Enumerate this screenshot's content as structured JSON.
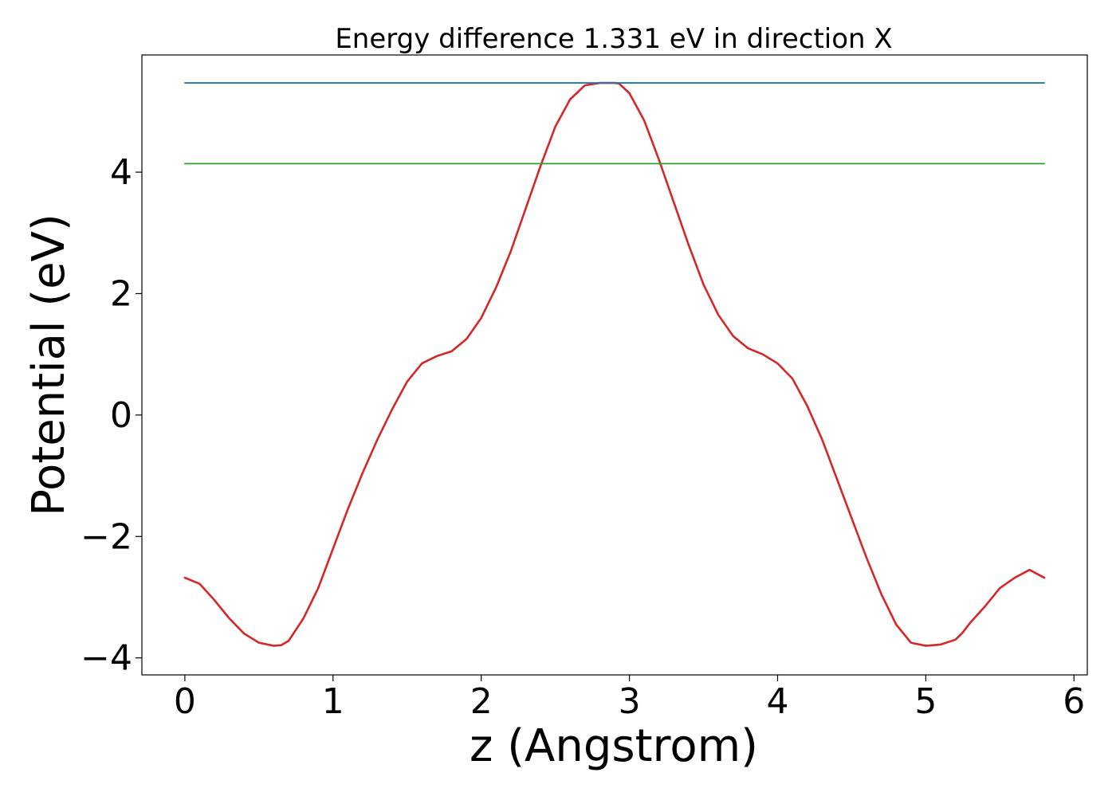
{
  "chart_data": {
    "type": "line",
    "title": "Energy difference 1.331 eV in direction X",
    "xlabel": "z (Angstrom)",
    "ylabel": "Potential (eV)",
    "xlim": [
      -0.29,
      6.09
    ],
    "ylim": [
      -4.28,
      5.93
    ],
    "xticks": [
      0,
      1,
      2,
      3,
      4,
      5,
      6
    ],
    "yticks": [
      -4,
      -2,
      0,
      2,
      4
    ],
    "xtick_labels": [
      "0",
      "1",
      "2",
      "3",
      "4",
      "5",
      "6"
    ],
    "ytick_labels": [
      "−4",
      "−2",
      "0",
      "2",
      "4"
    ],
    "grid": false,
    "legend": "none",
    "series": [
      {
        "color": "#d62728",
        "x": [
          0,
          0.1,
          0.2,
          0.3,
          0.4,
          0.5,
          0.6,
          0.65,
          0.7,
          0.8,
          0.9,
          1.0,
          1.1,
          1.2,
          1.3,
          1.4,
          1.5,
          1.6,
          1.7,
          1.8,
          1.9,
          2.0,
          2.1,
          2.2,
          2.3,
          2.4,
          2.5,
          2.6,
          2.7,
          2.8,
          2.9,
          2.93,
          3.0,
          3.1,
          3.2,
          3.3,
          3.4,
          3.5,
          3.6,
          3.7,
          3.8,
          3.9,
          4.0,
          4.1,
          4.2,
          4.3,
          4.4,
          4.5,
          4.6,
          4.7,
          4.8,
          4.9,
          5.0,
          5.1,
          5.2,
          5.25,
          5.3,
          5.4,
          5.5,
          5.6,
          5.7,
          5.8
        ],
        "y": [
          -2.68,
          -2.78,
          -3.05,
          -3.35,
          -3.6,
          -3.75,
          -3.8,
          -3.79,
          -3.72,
          -3.35,
          -2.85,
          -2.2,
          -1.55,
          -0.95,
          -0.4,
          0.1,
          0.55,
          0.85,
          0.97,
          1.05,
          1.25,
          1.6,
          2.1,
          2.7,
          3.4,
          4.1,
          4.75,
          5.2,
          5.43,
          5.47,
          5.47,
          5.46,
          5.3,
          4.85,
          4.2,
          3.5,
          2.8,
          2.15,
          1.65,
          1.3,
          1.1,
          1.0,
          0.85,
          0.6,
          0.15,
          -0.4,
          -1.05,
          -1.7,
          -2.35,
          -2.95,
          -3.45,
          -3.75,
          -3.8,
          -3.78,
          -3.7,
          -3.58,
          -3.42,
          -3.15,
          -2.85,
          -2.68,
          -2.55,
          -2.68
        ]
      },
      {
        "color": "#1f77b4",
        "x": [
          0,
          5.8
        ],
        "y": [
          5.47,
          5.47
        ]
      },
      {
        "color": "#2ca02c",
        "x": [
          0,
          5.8
        ],
        "y": [
          4.14,
          4.14
        ]
      }
    ]
  }
}
